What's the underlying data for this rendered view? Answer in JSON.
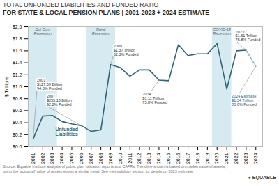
{
  "chart_data": {
    "type": "line",
    "title": "TOTAL UNFUNDED LIABILITIES AND FUNDED RATIO",
    "subtitle": "FOR STATE & LOCAL PENSION PLANS | 2001-2023 + 2024 ESTIMATE",
    "caption": "Source: Equable Institute analysis of public plan valuation reports and CAFRs. Trendline shown is based on market value of assets,\nusing the 'actuarial' value of assets shows a similar trend.  See methodology section for details on 2023 estimate.",
    "credit": "● EQUABLE",
    "y_label": "$ Trillions",
    "x": [
      2001,
      2002,
      2003,
      2004,
      2005,
      2006,
      2007,
      2008,
      2009,
      2010,
      2011,
      2012,
      2013,
      2014,
      2015,
      2016,
      2017,
      2018,
      2019,
      2020,
      2021,
      2022,
      2023,
      2024
    ],
    "series": [
      {
        "color": "#2e6476",
        "line_style": "solid",
        "values": [
          0.127,
          0.51,
          0.52,
          0.42,
          0.38,
          0.35,
          0.255,
          0.28,
          1.37,
          1.32,
          1.175,
          1.28,
          1.28,
          1.11,
          1.1,
          1.7,
          1.52,
          1.55,
          1.55,
          1.72,
          0.96,
          1.6,
          1.61,
          null
        ]
      },
      {
        "color": "#8ab8c4",
        "line_style": "dashed",
        "values": [
          null,
          null,
          null,
          null,
          null,
          null,
          null,
          null,
          null,
          null,
          null,
          null,
          null,
          null,
          null,
          null,
          null,
          null,
          null,
          null,
          null,
          null,
          1.61,
          1.34
        ]
      }
    ],
    "xlim": [
      2000.5,
      2024.7
    ],
    "xticks": [
      2001,
      2002,
      2003,
      2004,
      2005,
      2006,
      2007,
      2008,
      2009,
      2010,
      2011,
      2012,
      2013,
      2014,
      2015,
      2016,
      2017,
      2018,
      2019,
      2020,
      2021,
      2022,
      2023,
      2024
    ],
    "ylim": [
      0.0,
      2.0
    ],
    "yticks": [
      {
        "value": 0.0,
        "label": "$0.0"
      },
      {
        "value": 0.2,
        "label": "$0.2"
      },
      {
        "value": 0.4,
        "label": "$0.4"
      },
      {
        "value": 0.6,
        "label": "$0.6"
      },
      {
        "value": 0.8,
        "label": "$0.8"
      },
      {
        "value": 1.0,
        "label": "$1.0"
      },
      {
        "value": 1.2,
        "label": "$1.2"
      },
      {
        "value": 1.4,
        "label": "$1.4"
      },
      {
        "value": 1.6,
        "label": "$1.6"
      },
      {
        "value": 1.8,
        "label": "$1.8"
      },
      {
        "value": 2.0,
        "label": "$2.0"
      }
    ],
    "grid": false,
    "shading": {
      "color": "#d6eaf2",
      "spans": [
        {
          "start": 2001,
          "end": 2003,
          "label": "Dot Com\nRecession"
        },
        {
          "start": 2007,
          "end": 2009,
          "label": "Great\nRecession"
        },
        {
          "start": 2020,
          "end": 2021,
          "label": "COVID-19\nRecession"
        }
      ]
    },
    "annotations": [
      {
        "x": 2001,
        "y": 0.127,
        "text": "2001\n$127.59 Billion\n94.3% Funded",
        "text_x": 2001.4,
        "text_y": 0.95,
        "color": "#333333"
      },
      {
        "x": 2007,
        "y": 0.255,
        "text": "2007\n$255.10 Billion\n92.2% Funded",
        "text_x": 2002.4,
        "text_y": 0.68,
        "color": "#333333"
      },
      {
        "x": 2009,
        "y": 1.37,
        "text": "2009\n$1.37 Trillion\n62.3% Funded",
        "text_x": 2009.3,
        "text_y": 1.52,
        "color": "#333333"
      },
      {
        "x": 2014,
        "y": 1.11,
        "text": "2014\n$1.11 Trillion\n75.8% Funded",
        "text_x": 2012.3,
        "text_y": 0.72,
        "color": "#333333"
      },
      {
        "x": 2023,
        "y": 1.61,
        "text": "2023:\n$1.61 Trillion\n75.8% Funded",
        "text_x": 2021.9,
        "text_y": 1.76,
        "color": "#333333"
      },
      {
        "x": 2024,
        "y": 1.34,
        "text": "2024 Estimate:\n$1.34 Trillion\n80.6% Funded",
        "text_x": 2021.5,
        "text_y": 0.68,
        "color": "#2e6476"
      }
    ],
    "labels": [
      {
        "text": "Unfunded\nLiabilities",
        "x": 2003.3,
        "y": 0.18,
        "color": "#2e6476"
      }
    ]
  }
}
